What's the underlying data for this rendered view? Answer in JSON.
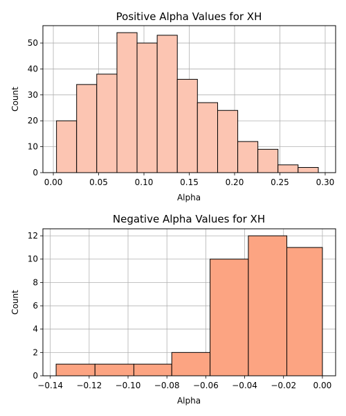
{
  "chart_data": [
    {
      "type": "bar",
      "title": "Positive Alpha Values for XH",
      "xlabel": "Alpha",
      "ylabel": "Count",
      "xlim": [
        -0.0115,
        0.3115
      ],
      "ylim": [
        0,
        56.7
      ],
      "xticks": [
        "0.00",
        "0.05",
        "0.10",
        "0.15",
        "0.20",
        "0.25",
        "0.30"
      ],
      "yticks": [
        "0",
        "10",
        "20",
        "30",
        "40",
        "50"
      ],
      "bin_edges": [
        0.0035,
        0.0257,
        0.0479,
        0.0702,
        0.0924,
        0.1146,
        0.1368,
        0.159,
        0.1813,
        0.2035,
        0.2257,
        0.2479,
        0.2701,
        0.2924
      ],
      "values": [
        20,
        34,
        38,
        54,
        50,
        53,
        36,
        27,
        24,
        12,
        9,
        3,
        2
      ],
      "grid": true,
      "colors": {
        "fill": "#fcc5b2",
        "edge": "#000000"
      }
    },
    {
      "type": "bar",
      "title": "Negative Alpha Values for XH",
      "xlabel": "Alpha",
      "ylabel": "Count",
      "xlim": [
        -0.1438,
        0.0068
      ],
      "ylim": [
        0,
        12.6
      ],
      "xticks": [
        "−0.14",
        "−0.12",
        "−0.10",
        "−0.08",
        "−0.06",
        "−0.04",
        "−0.02",
        "0.00"
      ],
      "yticks": [
        "0",
        "2",
        "4",
        "6",
        "8",
        "10",
        "12"
      ],
      "bin_edges": [
        -0.137,
        -0.117,
        -0.097,
        -0.0775,
        -0.0578,
        -0.0381,
        -0.0183,
        0.0
      ],
      "values": [
        1,
        1,
        1,
        2,
        10,
        12,
        11
      ],
      "grid": true,
      "colors": {
        "fill": "#fca482",
        "edge": "#000000"
      }
    }
  ]
}
